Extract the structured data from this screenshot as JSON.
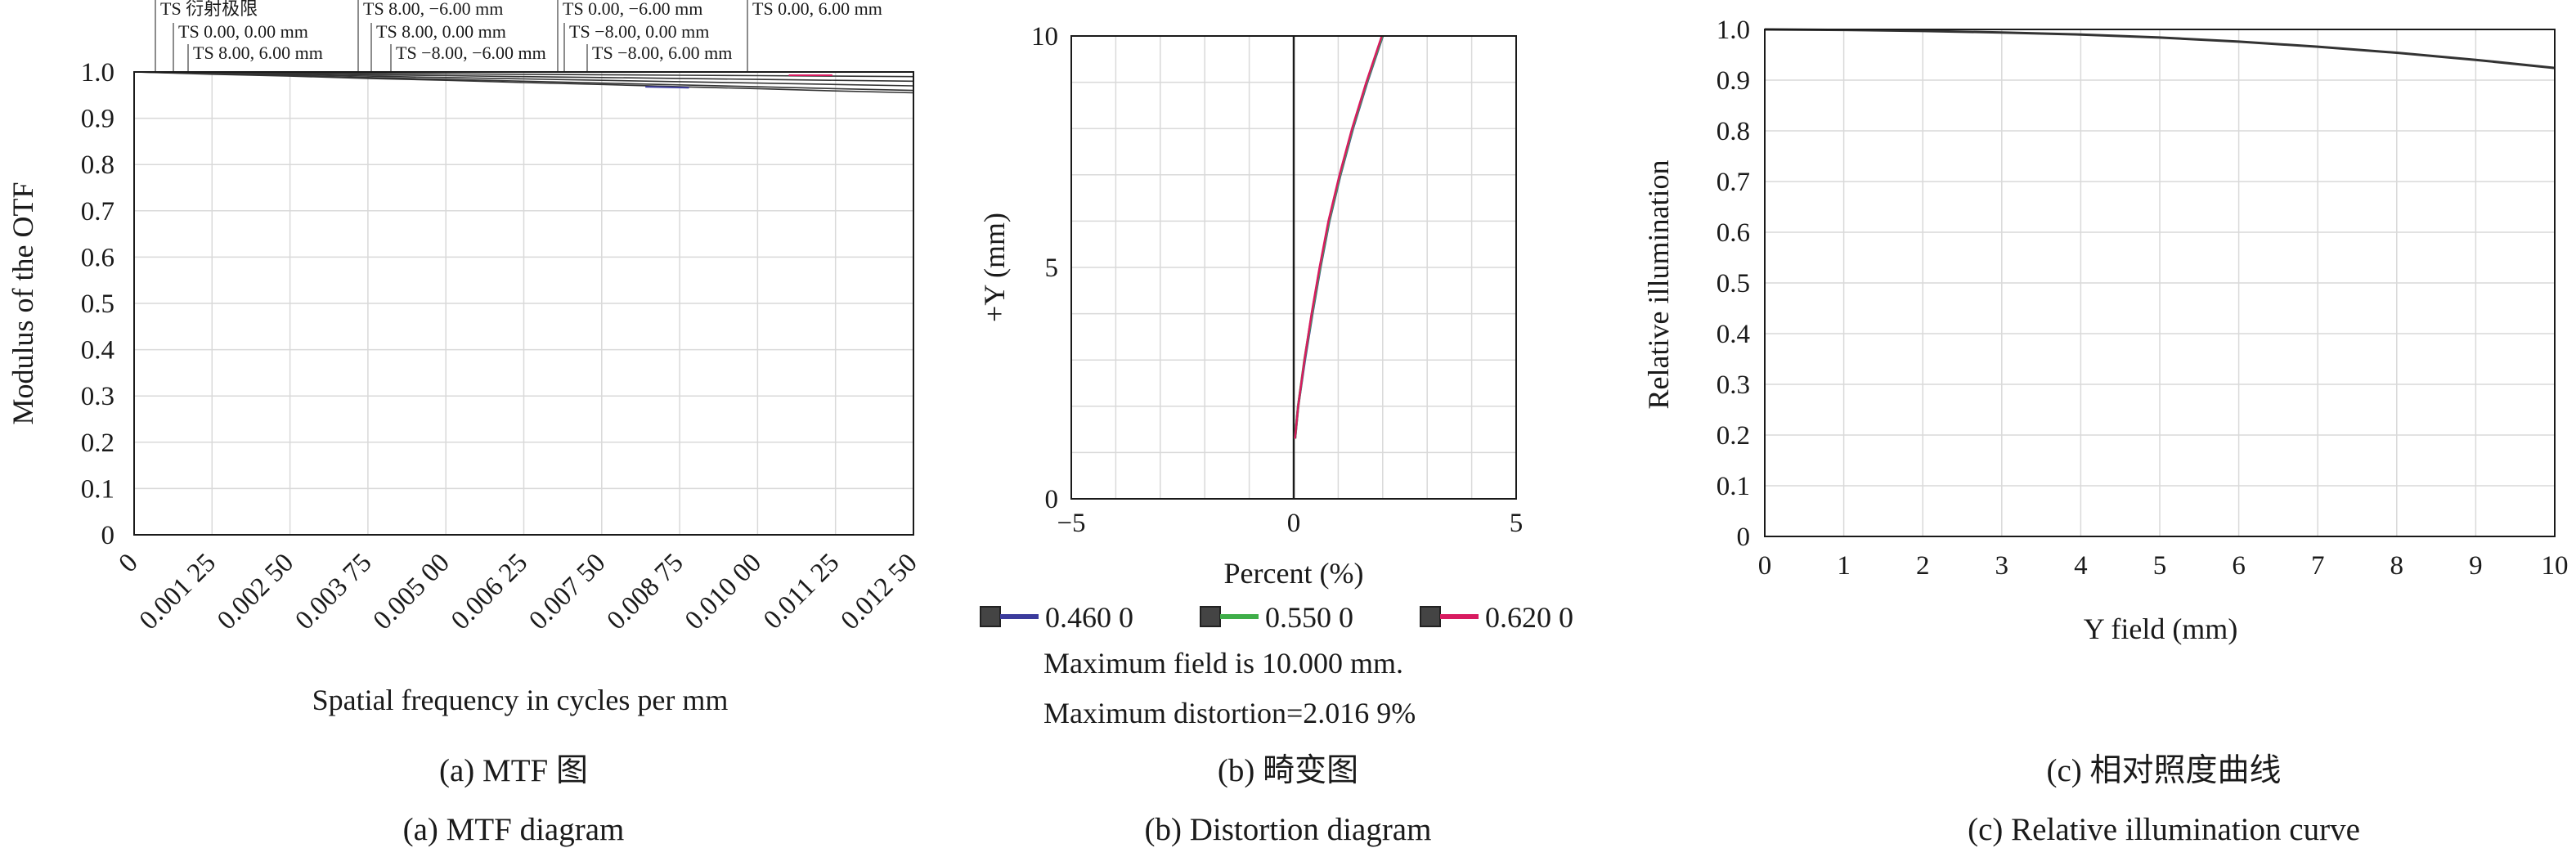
{
  "colors": {
    "frame": "#1a1a1a",
    "grid": "#d9d9d9",
    "blue": "#3b3b9c",
    "green": "#3fae49",
    "red": "#d81b60",
    "curve": "#333333"
  },
  "captions": {
    "a_zh": "(a) MTF 图",
    "a_en": "(a) MTF diagram",
    "b_zh": "(b) 畸变图",
    "b_en": "(b) Distortion diagram",
    "c_zh": "(c) 相对照度曲线",
    "c_en": "(c) Relative illumination curve"
  },
  "chart_data": [
    {
      "type": "line",
      "xlabel": "Spatial frequency in cycles per mm",
      "ylabel": "Modulus of the OTF",
      "xlim": [
        0,
        0.0125
      ],
      "ylim": [
        0,
        1.0
      ],
      "x_ticks": [
        "0",
        "0.001 25",
        "0.002 50",
        "0.003 75",
        "0.005 00",
        "0.006 25",
        "0.007 50",
        "0.008 75",
        "0.010 00",
        "0.011 25",
        "0.012 50"
      ],
      "y_ticks": [
        "0",
        "0.1",
        "0.2",
        "0.3",
        "0.4",
        "0.5",
        "0.6",
        "0.7",
        "0.8",
        "0.9",
        "1.0"
      ],
      "grid": true,
      "annotations": [
        "TS 衍射极限",
        "TS 0.00, 0.00 mm",
        "TS 8.00, 6.00 mm",
        "TS 8.00, −6.00 mm",
        "TS 8.00, 0.00 mm",
        "TS −8.00, −6.00 mm",
        "TS 0.00, −6.00 mm",
        "TS −8.00, 0.00 mm",
        "TS −8.00, 6.00 mm",
        "TS 0.00, 6.00 mm"
      ],
      "x": [
        0,
        0.00125,
        0.0025,
        0.00375,
        0.005,
        0.00625,
        0.0075,
        0.00875,
        0.01,
        0.01125,
        0.0125
      ],
      "series": [
        {
          "values": [
            1.0,
            1.0,
            1.0,
            1.0,
            1.0,
            1.0,
            1.0,
            1.0,
            1.0,
            1.0,
            1.0
          ]
        },
        {
          "values": [
            1.0,
            0.999,
            0.998,
            0.997,
            0.996,
            0.995,
            0.994,
            0.993,
            0.992,
            0.991,
            0.99
          ]
        },
        {
          "values": [
            1.0,
            0.998,
            0.996,
            0.994,
            0.992,
            0.99,
            0.988,
            0.986,
            0.984,
            0.982,
            0.98
          ]
        },
        {
          "values": [
            1.0,
            0.997,
            0.994,
            0.991,
            0.988,
            0.985,
            0.982,
            0.979,
            0.976,
            0.973,
            0.97
          ]
        },
        {
          "values": [
            1.0,
            0.996,
            0.992,
            0.988,
            0.984,
            0.98,
            0.976,
            0.972,
            0.968,
            0.964,
            0.96
          ]
        },
        {
          "values": [
            1.0,
            0.995,
            0.991,
            0.986,
            0.982,
            0.977,
            0.973,
            0.968,
            0.964,
            0.959,
            0.955
          ]
        }
      ]
    },
    {
      "type": "line",
      "xlabel": "Percent (%)",
      "ylabel": "+Y (mm)",
      "xlim": [
        -5,
        5
      ],
      "ylim": [
        0,
        10
      ],
      "x_ticks": [
        "−5",
        "0",
        "5"
      ],
      "y_ticks": [
        "0",
        "5",
        "10"
      ],
      "grid": true,
      "legend": [
        "0.460 0",
        "0.550 0",
        "0.620 0"
      ],
      "notes": [
        "Maximum field is 10.000 mm.",
        "Maximum distortion=2.016 9%"
      ],
      "y": [
        1.3,
        2,
        3,
        4,
        5,
        6,
        7,
        8,
        9,
        10
      ],
      "series": [
        {
          "name": "0.460 0",
          "values": [
            0.03,
            0.1,
            0.25,
            0.42,
            0.6,
            0.8,
            1.05,
            1.33,
            1.65,
            2.0
          ]
        },
        {
          "name": "0.550 0",
          "values": [
            0.03,
            0.1,
            0.24,
            0.41,
            0.59,
            0.79,
            1.04,
            1.32,
            1.64,
            1.99
          ]
        },
        {
          "name": "0.620 0",
          "values": [
            0.03,
            0.1,
            0.24,
            0.4,
            0.58,
            0.78,
            1.03,
            1.31,
            1.63,
            1.98
          ]
        }
      ]
    },
    {
      "type": "line",
      "xlabel": "Y field (mm)",
      "ylabel": "Relative illumination",
      "xlim": [
        0,
        10
      ],
      "ylim": [
        0,
        1.0
      ],
      "x_ticks": [
        "0",
        "1",
        "2",
        "3",
        "4",
        "5",
        "6",
        "7",
        "8",
        "9",
        "10"
      ],
      "y_ticks": [
        "0",
        "0.1",
        "0.2",
        "0.3",
        "0.4",
        "0.5",
        "0.6",
        "0.7",
        "0.8",
        "0.9",
        "1.0"
      ],
      "grid": true,
      "x": [
        0,
        1,
        2,
        3,
        4,
        5,
        6,
        7,
        8,
        9,
        10
      ],
      "series": [
        {
          "values": [
            1.0,
            0.999,
            0.997,
            0.994,
            0.99,
            0.984,
            0.976,
            0.966,
            0.954,
            0.94,
            0.924
          ]
        }
      ]
    }
  ]
}
